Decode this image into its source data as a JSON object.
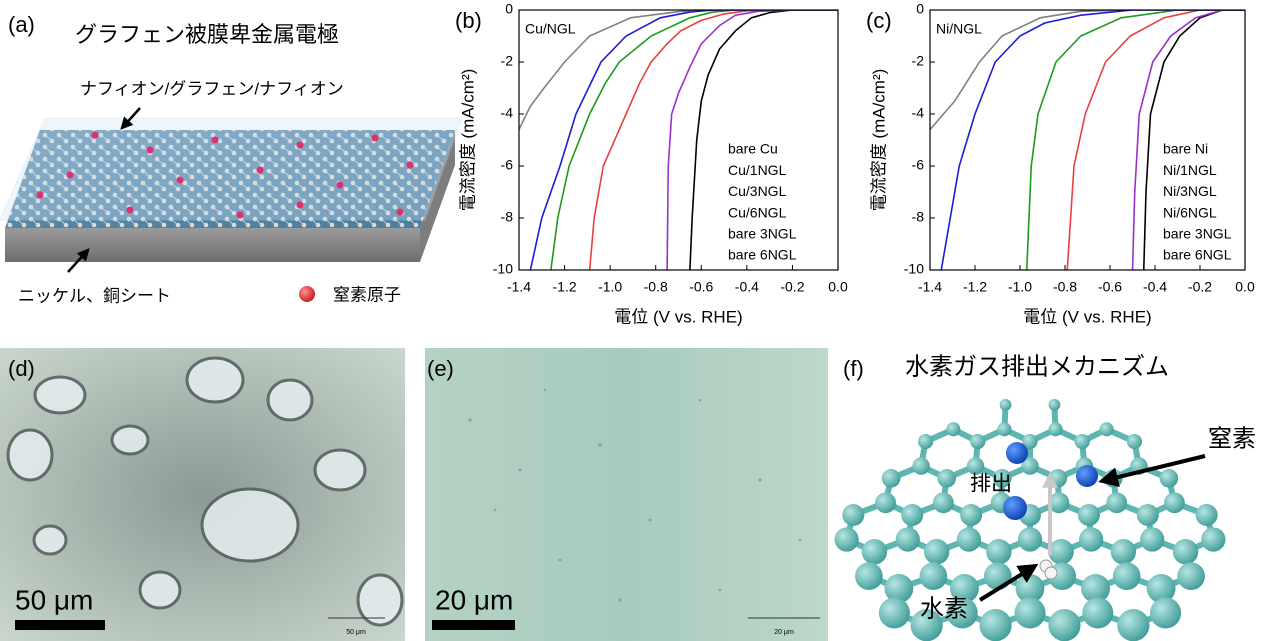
{
  "panel_a": {
    "label": "(a)",
    "title": "グラフェン被膜卑金属電極",
    "top_label": "ナフィオン/グラフェン/ナフィオン",
    "bottom_label": "ニッケル、銅シート",
    "legend": "窒素原子"
  },
  "panel_d": {
    "label": "(d)",
    "scale": "50 μm",
    "scale_small": "50 μm"
  },
  "panel_e": {
    "label": "(e)",
    "scale": "20 μm",
    "scale_small": "20 μm"
  },
  "panel_f": {
    "label": "(f)",
    "title": "水素ガス排出メカニズム",
    "nitrogen": "窒素",
    "release": "排出",
    "hydrogen": "水素"
  },
  "chart_data": [
    {
      "type": "line",
      "label": "(b)",
      "annotation": "Cu/NGL",
      "xlabel": "電位 (V vs. RHE)",
      "ylabel": "電流密度 (mA/cm²)",
      "xlim": [
        -1.4,
        0
      ],
      "ylim": [
        -10,
        0
      ],
      "xticks": [
        -1.4,
        -1.2,
        {
          "value": -1,
          "label": "-1.0"
        },
        -0.8,
        -0.6,
        -0.4,
        -0.2,
        {
          "value": 0,
          "label": "0.0"
        }
      ],
      "yticks": [
        -10,
        -8,
        -6,
        -4,
        -2,
        0
      ],
      "legend": "lower right",
      "series": [
        {
          "name": "bare Cu",
          "color": "#000000",
          "x": [
            -0.65,
            -0.64,
            -0.62,
            -0.6,
            -0.57,
            -0.52,
            -0.45,
            -0.38,
            -0.3,
            -0.2,
            0
          ],
          "values": [
            -10,
            -8,
            -5,
            -3.5,
            -2.5,
            -1.5,
            -0.8,
            -0.3,
            -0.1,
            0,
            0
          ]
        },
        {
          "name": "Cu/1NGL",
          "color": "#9b30c8",
          "x": [
            -0.75,
            -0.745,
            -0.73,
            -0.7,
            -0.65,
            -0.6,
            -0.52,
            -0.45,
            -0.35,
            -0.2,
            0
          ],
          "values": [
            -10,
            -6,
            -4,
            -3.2,
            -2.2,
            -1.3,
            -0.6,
            -0.2,
            -0.05,
            0,
            0
          ]
        },
        {
          "name": "Cu/3NGL",
          "color": "#e8413c",
          "x": [
            -1.09,
            -1.07,
            -1.03,
            -0.98,
            -0.93,
            -0.87,
            -0.82,
            -0.75,
            -0.69,
            -0.6,
            -0.5,
            -0.4,
            -0.3,
            0
          ],
          "values": [
            -10,
            -8,
            -6,
            -5,
            -4,
            -2.8,
            -2,
            -1.3,
            -0.8,
            -0.4,
            -0.15,
            -0.03,
            0,
            0
          ]
        },
        {
          "name": "Cu/6NGL",
          "color": "#1a9c1a",
          "x": [
            -1.26,
            -1.23,
            -1.18,
            -1.09,
            -1.02,
            -0.96,
            -0.82,
            -0.65,
            -0.55,
            -0.45,
            0
          ],
          "values": [
            -10,
            -8,
            -6,
            -4,
            -2.8,
            -2,
            -1,
            -0.3,
            -0.08,
            0,
            0
          ]
        },
        {
          "name": "bare 3NGL",
          "color": "#808080",
          "x": [
            -1.4,
            -1.35,
            -1.29,
            -1.2,
            -1.09,
            -0.91,
            -0.69,
            -0.5,
            0
          ],
          "values": [
            -4.6,
            -3.7,
            -3,
            -2,
            -1,
            -0.3,
            -0.05,
            0,
            0
          ]
        },
        {
          "name": "bare 6NGL",
          "color": "#1c1cd8",
          "x": [
            -1.35,
            -1.3,
            -1.22,
            -1.15,
            -1.04,
            -0.93,
            -0.78,
            -0.65,
            -0.55,
            0
          ],
          "values": [
            -10,
            -8,
            -6,
            -4,
            -2,
            -1,
            -0.3,
            -0.08,
            0,
            0
          ]
        }
      ]
    },
    {
      "type": "line",
      "label": "(c)",
      "annotation": "Ni/NGL",
      "xlabel": "電位 (V vs. RHE)",
      "ylabel": "電流密度 (mA/cm²)",
      "xlim": [
        -1.4,
        0
      ],
      "ylim": [
        -10,
        0
      ],
      "xticks": [
        -1.4,
        -1.2,
        {
          "value": -1,
          "label": "-1.0"
        },
        -0.8,
        -0.6,
        -0.4,
        -0.2,
        {
          "value": 0,
          "label": "0.0"
        }
      ],
      "yticks": [
        -10,
        -8,
        -6,
        -4,
        -2,
        0
      ],
      "legend": "lower right",
      "series": [
        {
          "name": "bare Ni",
          "color": "#000000",
          "x": [
            -0.45,
            -0.44,
            -0.42,
            -0.36,
            -0.29,
            -0.2,
            -0.1,
            0
          ],
          "values": [
            -10,
            -7,
            -4,
            -2,
            -1,
            -0.3,
            0,
            0
          ]
        },
        {
          "name": "Ni/1NGL",
          "color": "#9b30c8",
          "x": [
            -0.5,
            -0.49,
            -0.47,
            -0.41,
            -0.33,
            -0.22,
            -0.1,
            0
          ],
          "values": [
            -10,
            -7,
            -4,
            -2,
            -1,
            -0.3,
            0,
            0
          ]
        },
        {
          "name": "Ni/3NGL",
          "color": "#e8413c",
          "x": [
            -0.79,
            -0.76,
            -0.71,
            -0.62,
            -0.51,
            -0.36,
            -0.2,
            0
          ],
          "values": [
            -10,
            -6,
            -4,
            -2,
            -1,
            -0.3,
            0,
            0
          ]
        },
        {
          "name": "Ni/6NGL",
          "color": "#1a9c1a",
          "x": [
            -0.97,
            -0.95,
            -0.92,
            -0.84,
            -0.73,
            -0.55,
            -0.3,
            0
          ],
          "values": [
            -10,
            -6,
            -4,
            -2,
            -1,
            -0.3,
            0,
            0
          ]
        },
        {
          "name": "bare 3NGL",
          "color": "#808080",
          "x": [
            -1.4,
            -1.34,
            -1.29,
            -1.18,
            -1.08,
            -0.91,
            -0.73,
            -0.5,
            0
          ],
          "values": [
            -4.6,
            -4,
            -3.5,
            -2,
            -1,
            -0.3,
            -0.05,
            0,
            0
          ]
        },
        {
          "name": "bare 6NGL",
          "color": "#1c1cd8",
          "x": [
            -1.35,
            -1.27,
            -1.2,
            -1.11,
            -1,
            -0.89,
            -0.73,
            -0.5,
            0
          ],
          "values": [
            -10,
            -6,
            -4,
            -2,
            -1,
            -0.5,
            -0.2,
            0,
            0
          ]
        }
      ]
    }
  ]
}
